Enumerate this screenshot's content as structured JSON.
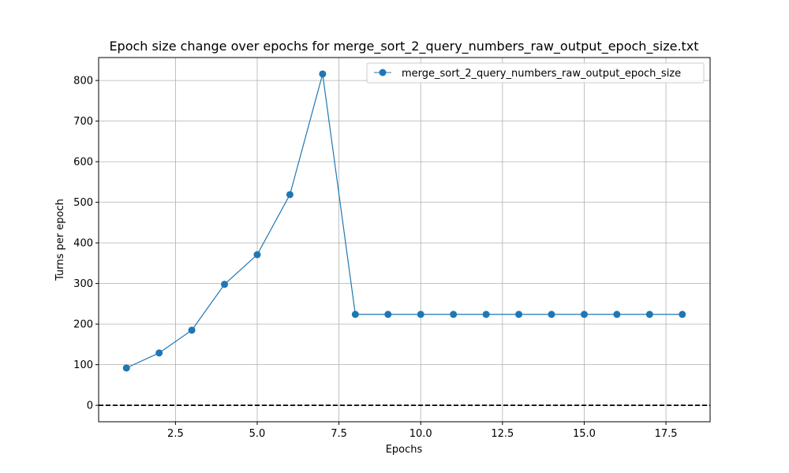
{
  "chart_data": {
    "type": "line",
    "title": "Epoch size change over epochs for merge_sort_2_query_numbers_raw_output_epoch_size.txt",
    "xlabel": "Epochs",
    "ylabel": "Turns per epoch",
    "xlim": [
      0.15,
      18.85
    ],
    "ylim": [
      -40.5,
      856.5
    ],
    "xticks": [
      2.5,
      5.0,
      7.5,
      10.0,
      12.5,
      15.0,
      17.5
    ],
    "xtick_labels": [
      "2.5",
      "5.0",
      "7.5",
      "10.0",
      "12.5",
      "15.0",
      "17.5"
    ],
    "yticks": [
      0,
      100,
      200,
      300,
      400,
      500,
      600,
      700,
      800
    ],
    "ytick_labels": [
      "0",
      "100",
      "200",
      "300",
      "400",
      "500",
      "600",
      "700",
      "800"
    ],
    "grid": true,
    "legend_position": "top-right",
    "reference_line": {
      "y": 0,
      "style": "dashed",
      "color": "#000000"
    },
    "series": [
      {
        "name": "merge_sort_2_query_numbers_raw_output_epoch_size",
        "color": "#1f77b4",
        "marker": "circle",
        "x": [
          1,
          2,
          3,
          4,
          5,
          6,
          7,
          8,
          9,
          10,
          11,
          12,
          13,
          14,
          15,
          16,
          17,
          18
        ],
        "values": [
          92,
          129,
          185,
          298,
          371,
          519,
          816,
          224,
          224,
          224,
          224,
          224,
          224,
          224,
          224,
          224,
          224,
          224
        ]
      }
    ]
  }
}
